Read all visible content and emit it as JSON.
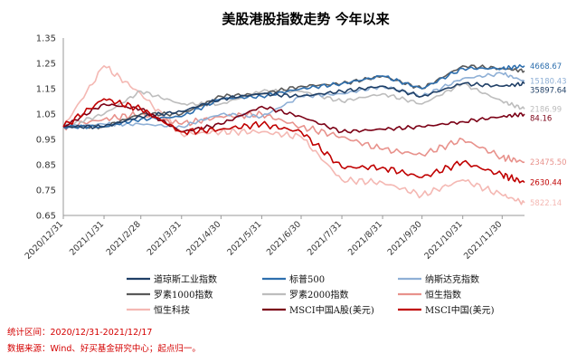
{
  "chart_data": {
    "type": "line",
    "title": "美股港股指数走势  今年以来",
    "xlabel": "",
    "ylabel": "",
    "ylim": [
      0.65,
      1.35
    ],
    "yticks": [
      0.65,
      0.75,
      0.85,
      0.95,
      1.05,
      1.15,
      1.25,
      1.35
    ],
    "ytick_labels": [
      "0.65",
      "0.75",
      "0.85",
      "0.95",
      "1.05",
      "1.15",
      "1.25",
      "1.35"
    ],
    "x_dates": [
      "2020-12-31",
      "2021-01-31",
      "2021-02-28",
      "2021-03-31",
      "2021-04-30",
      "2021-05-31",
      "2021-06-30",
      "2021-07-31",
      "2021-08-31",
      "2021-09-30",
      "2021-10-31",
      "2021-11-30",
      "2021-12-17"
    ],
    "xtick_labels": [
      "2020/12/31",
      "2021/1/31",
      "2021/2/28",
      "2021/3/31",
      "2021/4/30",
      "2021/5/31",
      "2021/6/30",
      "2021/7/31",
      "2021/8/31",
      "2021/9/30",
      "2021/10/31",
      "2021/11/30"
    ],
    "grid": false,
    "legend_position": "bottom",
    "series": [
      {
        "name": "道琼斯工业指数",
        "color": "#1f3f66",
        "end_label": "35897.64",
        "values": [
          1.0,
          1.0,
          1.04,
          1.06,
          1.11,
          1.13,
          1.12,
          1.14,
          1.16,
          1.12,
          1.17,
          1.16,
          1.17
        ]
      },
      {
        "name": "标普500",
        "color": "#2e6fae",
        "end_label": "4668.67",
        "values": [
          1.0,
          1.0,
          1.03,
          1.04,
          1.11,
          1.12,
          1.15,
          1.17,
          1.2,
          1.15,
          1.23,
          1.23,
          1.24
        ]
      },
      {
        "name": "纳斯达克指数",
        "color": "#8fb0d6",
        "end_label": "15180.43",
        "values": [
          1.0,
          1.01,
          1.01,
          1.0,
          1.05,
          1.04,
          1.12,
          1.13,
          1.16,
          1.12,
          1.19,
          1.21,
          1.18
        ]
      },
      {
        "name": "罗素1000指数",
        "color": "#5a5a5a",
        "end_label": "",
        "values": [
          1.0,
          1.0,
          1.05,
          1.05,
          1.12,
          1.13,
          1.16,
          1.17,
          1.2,
          1.15,
          1.24,
          1.23,
          1.22
        ]
      },
      {
        "name": "罗素2000指数",
        "color": "#bdbdbd",
        "end_label": "2186.99",
        "values": [
          1.0,
          1.05,
          1.14,
          1.09,
          1.09,
          1.14,
          1.14,
          1.1,
          1.13,
          1.09,
          1.17,
          1.1,
          1.07
        ]
      },
      {
        "name": "恒生指数",
        "color": "#e8928c",
        "end_label": "23475.50",
        "values": [
          1.0,
          1.03,
          1.05,
          1.01,
          1.04,
          1.05,
          1.0,
          0.96,
          0.91,
          0.89,
          0.95,
          0.88,
          0.86
        ]
      },
      {
        "name": "恒生科技",
        "color": "#f4b8b3",
        "end_label": "5822.14",
        "values": [
          1.0,
          1.24,
          1.13,
          0.97,
          0.98,
          0.98,
          0.96,
          0.79,
          0.78,
          0.73,
          0.79,
          0.73,
          0.7
        ]
      },
      {
        "name": "MSCI中国A股(美元)",
        "color": "#7b0015",
        "end_label": "84.16",
        "values": [
          1.0,
          1.09,
          1.07,
          0.98,
          1.01,
          1.08,
          1.04,
          0.98,
          0.99,
          1.0,
          1.02,
          1.04,
          1.05
        ]
      },
      {
        "name": "MSCI中国(美元)",
        "color": "#c00000",
        "end_label": "2630.44",
        "values": [
          1.0,
          1.11,
          1.07,
          0.98,
          0.99,
          1.01,
          0.98,
          0.84,
          0.84,
          0.8,
          0.86,
          0.81,
          0.78
        ]
      }
    ]
  },
  "footer": {
    "period": "统计区间：2020/12/31-2021/12/17",
    "source": "数据来源：Wind、好买基金研究中心；起点归一。"
  }
}
